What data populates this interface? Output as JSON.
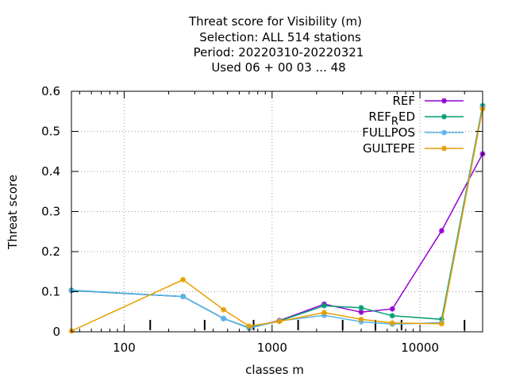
{
  "chart_data": {
    "type": "line",
    "title_lines": [
      "Threat score  for Visibility (m)",
      "Selection: ALL    514 stations",
      "Period: 20220310-20220321",
      "Used  06 + 00 03 ... 48"
    ],
    "xlabel": "classes m",
    "ylabel": "Threat score",
    "x_scale": "log",
    "xlim": [
      44,
      26500
    ],
    "ylim": [
      0,
      0.6
    ],
    "x_ticks": [
      100,
      1000,
      10000
    ],
    "x_tick_labels": [
      "100",
      "1000",
      "10000"
    ],
    "y_ticks": [
      0,
      0.1,
      0.2,
      0.3,
      0.4,
      0.5,
      0.6
    ],
    "y_tick_labels": [
      "0",
      "0.1",
      "0.2",
      "0.3",
      "0.4",
      "0.5",
      "0.6"
    ],
    "class_marks": [
      150,
      350,
      750,
      1500,
      3000,
      5000,
      7500,
      20000
    ],
    "grid": true,
    "legend_position": "top-right",
    "series": [
      {
        "name": "REF",
        "color": "#9400d3",
        "x": [
          44,
          250,
          470,
          700,
          1120,
          2250,
          4000,
          6500,
          14000,
          26500
        ],
        "y": [
          0.103,
          0.088,
          0.033,
          0.01,
          0.028,
          0.069,
          0.049,
          0.057,
          0.252,
          0.444
        ]
      },
      {
        "name": "REF_RED",
        "legend_main_before": "REF",
        "legend_sub": "R",
        "legend_main_after": "ED",
        "color": "#009e73",
        "x": [
          44,
          250,
          470,
          700,
          1120,
          2250,
          4000,
          6500,
          14000,
          26500
        ],
        "y": [
          0.103,
          0.088,
          0.033,
          0.01,
          0.027,
          0.065,
          0.06,
          0.04,
          0.031,
          0.564
        ]
      },
      {
        "name": "FULLPOS",
        "color": "#56b4e9",
        "x": [
          44,
          250,
          470,
          700,
          1120,
          2250,
          4000,
          6500,
          14000,
          26500
        ],
        "y": [
          0.104,
          0.088,
          0.033,
          0.009,
          0.027,
          0.041,
          0.025,
          0.019,
          0.023,
          0.56
        ]
      },
      {
        "name": "GULTEPE",
        "color": "#e69f00",
        "x": [
          44,
          250,
          470,
          700,
          1120,
          2250,
          4000,
          6500,
          14000,
          26500
        ],
        "y": [
          0.002,
          0.13,
          0.055,
          0.014,
          0.026,
          0.048,
          0.031,
          0.022,
          0.02,
          0.556
        ]
      }
    ]
  }
}
